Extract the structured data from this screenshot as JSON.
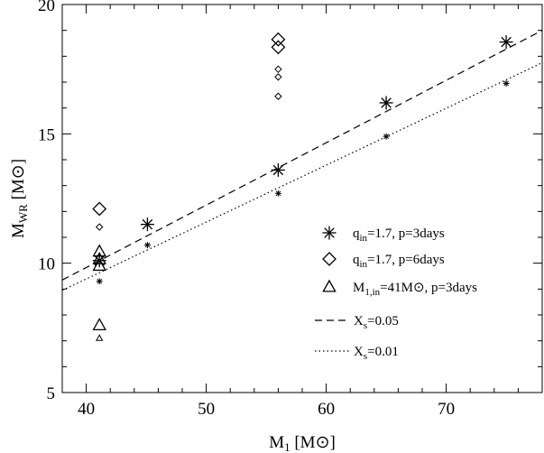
{
  "chart_data": {
    "type": "scatter",
    "title": "",
    "xlabel": "M₁ [M⊙]",
    "ylabel": "M_WR [M⊙]",
    "xlim": [
      38,
      78
    ],
    "ylim": [
      5,
      20
    ],
    "xticks": [
      40,
      50,
      60,
      70
    ],
    "yticks": [
      5,
      10,
      15,
      20
    ],
    "grid": false,
    "legend_position": "right",
    "series": [
      {
        "name": "q_in=1.7, p=3days",
        "marker": "asterisk",
        "large_points": [
          [
            41.1,
            10.1
          ],
          [
            45.1,
            11.5
          ],
          [
            56.0,
            13.6
          ],
          [
            65.0,
            16.2
          ],
          [
            75.0,
            18.55
          ]
        ],
        "small_points": [
          [
            41.1,
            9.3
          ],
          [
            45.1,
            10.7
          ],
          [
            56.0,
            12.7
          ],
          [
            65.0,
            14.9
          ],
          [
            75.0,
            16.95
          ]
        ]
      },
      {
        "name": "q_in=1.7, p=6days",
        "marker": "diamond",
        "large_points": [
          [
            41.1,
            12.1
          ],
          [
            56.0,
            18.65
          ],
          [
            56.0,
            18.35
          ]
        ],
        "small_points": [
          [
            41.1,
            11.4
          ],
          [
            56.0,
            17.5
          ],
          [
            56.0,
            17.2
          ],
          [
            56.0,
            16.45
          ]
        ]
      },
      {
        "name": "M_1,in=41M⊙, p=3days",
        "marker": "triangle",
        "large_points": [
          [
            41.1,
            10.45
          ],
          [
            41.1,
            10.15
          ],
          [
            41.1,
            9.9
          ],
          [
            41.1,
            7.6
          ]
        ],
        "small_points": [
          [
            41.1,
            7.1
          ]
        ]
      }
    ],
    "fit_lines": [
      {
        "name": "X_s=0.05",
        "style": "dashed",
        "x": [
          38,
          78
        ],
        "y": [
          9.35,
          19.0
        ]
      },
      {
        "name": "X_s=0.01",
        "style": "dotted",
        "x": [
          38,
          78
        ],
        "y": [
          8.95,
          17.75
        ]
      }
    ],
    "legend": [
      {
        "marker": "asterisk",
        "main": "q",
        "sub": "in",
        "rest": "=1.7,  p=3days"
      },
      {
        "marker": "diamond",
        "main": "q",
        "sub": "in",
        "rest": "=1.7,  p=6days"
      },
      {
        "marker": "triangle",
        "main": "M",
        "sub": "1,in",
        "rest": "=41M⊙,  p=3days"
      },
      {
        "marker": "dashed",
        "main": "X",
        "sub": "s",
        "rest": "=0.05"
      },
      {
        "marker": "dotted",
        "main": "X",
        "sub": "s",
        "rest": "=0.01"
      }
    ]
  },
  "axes_text": {
    "x_main": "M",
    "x_sub": "1",
    "x_unit": " [M⊙]",
    "y_main": "M",
    "y_sub": "WR",
    "y_unit": " [M⊙]"
  }
}
